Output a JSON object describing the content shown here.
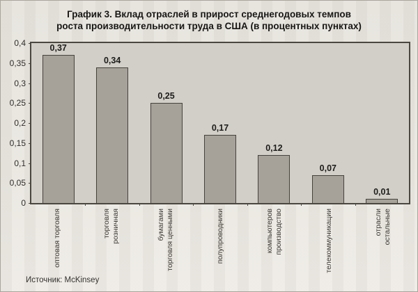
{
  "chart_data": {
    "type": "bar",
    "title": "График 3. Вклад отраслей в прирост среднегодовых темпов роста производительности труда в США (в процентных пунктах)",
    "title_lines": [
      "График 3. Вклад отраслей в прирост среднегодовых темпов",
      "роста производительности труда в США (в процентных пунктах)"
    ],
    "categories": [
      "оптовая торговля",
      "розничная торговля",
      "торговля ценными бумагами",
      "полупроводники",
      "производство компьютеров",
      "телекоммуникации",
      "остальные отрасли"
    ],
    "category_label_lines": [
      [
        "оптовая торговля"
      ],
      [
        "розничная",
        "торговля"
      ],
      [
        "торговля ценными",
        "бумагами"
      ],
      [
        "полупроводники"
      ],
      [
        "производство",
        "компьютеров"
      ],
      [
        "телекоммуникации"
      ],
      [
        "остальные",
        "отрасли"
      ]
    ],
    "values": [
      0.37,
      0.34,
      0.25,
      0.17,
      0.12,
      0.07,
      0.01
    ],
    "value_labels": [
      "0,37",
      "0,34",
      "0,25",
      "0,17",
      "0,12",
      "0,07",
      "0,01"
    ],
    "y_tick_values": [
      0,
      0.05,
      0.1,
      0.15,
      0.2,
      0.25,
      0.3,
      0.35,
      0.4
    ],
    "y_tick_labels": [
      "0",
      "0,05",
      "0,1",
      "0,15",
      "0,2",
      "0,25",
      "0,3",
      "0,35",
      "0,4"
    ],
    "ylim": [
      0,
      0.4
    ],
    "xlabel": "",
    "ylabel": "",
    "grid": false,
    "legend": false,
    "x_label_rotation": "90deg-bottom-to-top",
    "source": "Источник: McKinsey",
    "colors": {
      "page_bg": "#eae7e1",
      "plot_bg": "#d2cfc8",
      "bar_fill": "#a6a29a",
      "bar_border": "#45423d",
      "axis": "#4a4741",
      "text": "#2d2b28"
    }
  }
}
